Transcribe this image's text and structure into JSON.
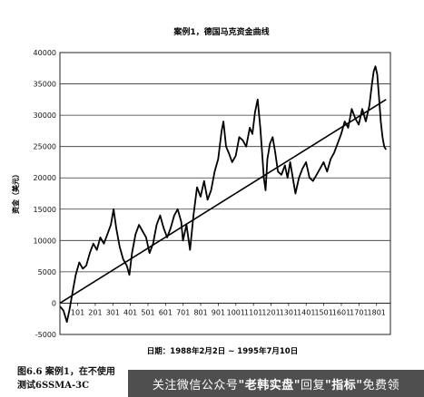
{
  "chart_data": {
    "type": "line",
    "title": "案例1，德国马克资金曲线",
    "ylabel": "资金（美元）",
    "xlabel": "日期：1988年2月2日 ~ 1995年7月10日",
    "ylim": [
      -5000,
      40000
    ],
    "yticks": [
      -5000,
      0,
      5000,
      10000,
      15000,
      20000,
      25000,
      30000,
      35000,
      40000
    ],
    "xlim": [
      0,
      1880
    ],
    "xticks": [
      101,
      201,
      301,
      401,
      501,
      601,
      701,
      801,
      901,
      1001,
      1101,
      1201,
      1301,
      1401,
      1501,
      1601,
      1701,
      1801
    ],
    "grid": "horizontal",
    "series": [
      {
        "points": [
          [
            0,
            -500
          ],
          [
            20,
            -1200
          ],
          [
            40,
            -3000
          ],
          [
            55,
            -1000
          ],
          [
            70,
            1500
          ],
          [
            90,
            4500
          ],
          [
            110,
            6500
          ],
          [
            130,
            5500
          ],
          [
            150,
            6000
          ],
          [
            170,
            8000
          ],
          [
            190,
            9500
          ],
          [
            210,
            8500
          ],
          [
            230,
            10500
          ],
          [
            250,
            9500
          ],
          [
            270,
            11000
          ],
          [
            290,
            12500
          ],
          [
            305,
            15000
          ],
          [
            320,
            12000
          ],
          [
            340,
            9000
          ],
          [
            360,
            7000
          ],
          [
            380,
            6000
          ],
          [
            395,
            4500
          ],
          [
            410,
            8000
          ],
          [
            430,
            11000
          ],
          [
            450,
            12500
          ],
          [
            470,
            11500
          ],
          [
            490,
            10500
          ],
          [
            510,
            8000
          ],
          [
            530,
            9500
          ],
          [
            550,
            12500
          ],
          [
            570,
            14000
          ],
          [
            590,
            12000
          ],
          [
            610,
            10500
          ],
          [
            630,
            12000
          ],
          [
            650,
            14000
          ],
          [
            670,
            15000
          ],
          [
            690,
            13000
          ],
          [
            700,
            10000
          ],
          [
            720,
            12500
          ],
          [
            740,
            8500
          ],
          [
            760,
            14000
          ],
          [
            780,
            18500
          ],
          [
            800,
            17000
          ],
          [
            820,
            19500
          ],
          [
            840,
            16500
          ],
          [
            860,
            18000
          ],
          [
            880,
            21000
          ],
          [
            900,
            23000
          ],
          [
            920,
            27500
          ],
          [
            930,
            29000
          ],
          [
            945,
            25000
          ],
          [
            960,
            24000
          ],
          [
            980,
            22500
          ],
          [
            1000,
            23500
          ],
          [
            1020,
            26500
          ],
          [
            1040,
            26000
          ],
          [
            1060,
            25000
          ],
          [
            1080,
            28000
          ],
          [
            1095,
            27000
          ],
          [
            1110,
            30500
          ],
          [
            1125,
            32500
          ],
          [
            1140,
            28000
          ],
          [
            1150,
            24000
          ],
          [
            1160,
            20000
          ],
          [
            1170,
            18000
          ],
          [
            1180,
            23000
          ],
          [
            1195,
            25500
          ],
          [
            1210,
            26500
          ],
          [
            1225,
            24000
          ],
          [
            1240,
            21000
          ],
          [
            1260,
            20500
          ],
          [
            1280,
            22000
          ],
          [
            1295,
            20000
          ],
          [
            1310,
            22500
          ],
          [
            1325,
            20000
          ],
          [
            1340,
            17500
          ],
          [
            1360,
            20000
          ],
          [
            1380,
            21500
          ],
          [
            1400,
            22500
          ],
          [
            1420,
            20000
          ],
          [
            1440,
            19500
          ],
          [
            1460,
            20500
          ],
          [
            1480,
            21500
          ],
          [
            1500,
            22500
          ],
          [
            1520,
            21000
          ],
          [
            1540,
            23000
          ],
          [
            1560,
            24000
          ],
          [
            1580,
            25500
          ],
          [
            1600,
            27000
          ],
          [
            1620,
            29000
          ],
          [
            1640,
            28000
          ],
          [
            1660,
            31000
          ],
          [
            1680,
            29500
          ],
          [
            1700,
            28500
          ],
          [
            1720,
            31000
          ],
          [
            1740,
            29000
          ],
          [
            1760,
            31500
          ],
          [
            1775,
            35000
          ],
          [
            1785,
            37000
          ],
          [
            1795,
            37800
          ],
          [
            1805,
            36500
          ],
          [
            1815,
            33000
          ],
          [
            1825,
            29000
          ],
          [
            1835,
            26500
          ],
          [
            1845,
            25000
          ],
          [
            1855,
            24500
          ]
        ]
      },
      {
        "points": [
          [
            0,
            0
          ],
          [
            1855,
            32500
          ]
        ]
      }
    ]
  },
  "caption": {
    "line1": "图6.6  案例1，在不使用",
    "line2": "测试6SSMA-3C"
  },
  "watermark": {
    "text1": "关注微信公众号",
    "hl1": "\"老韩实盘\"",
    "text2": " 回复 ",
    "hl2": "\"指标\"",
    "text3": " 免费领"
  }
}
